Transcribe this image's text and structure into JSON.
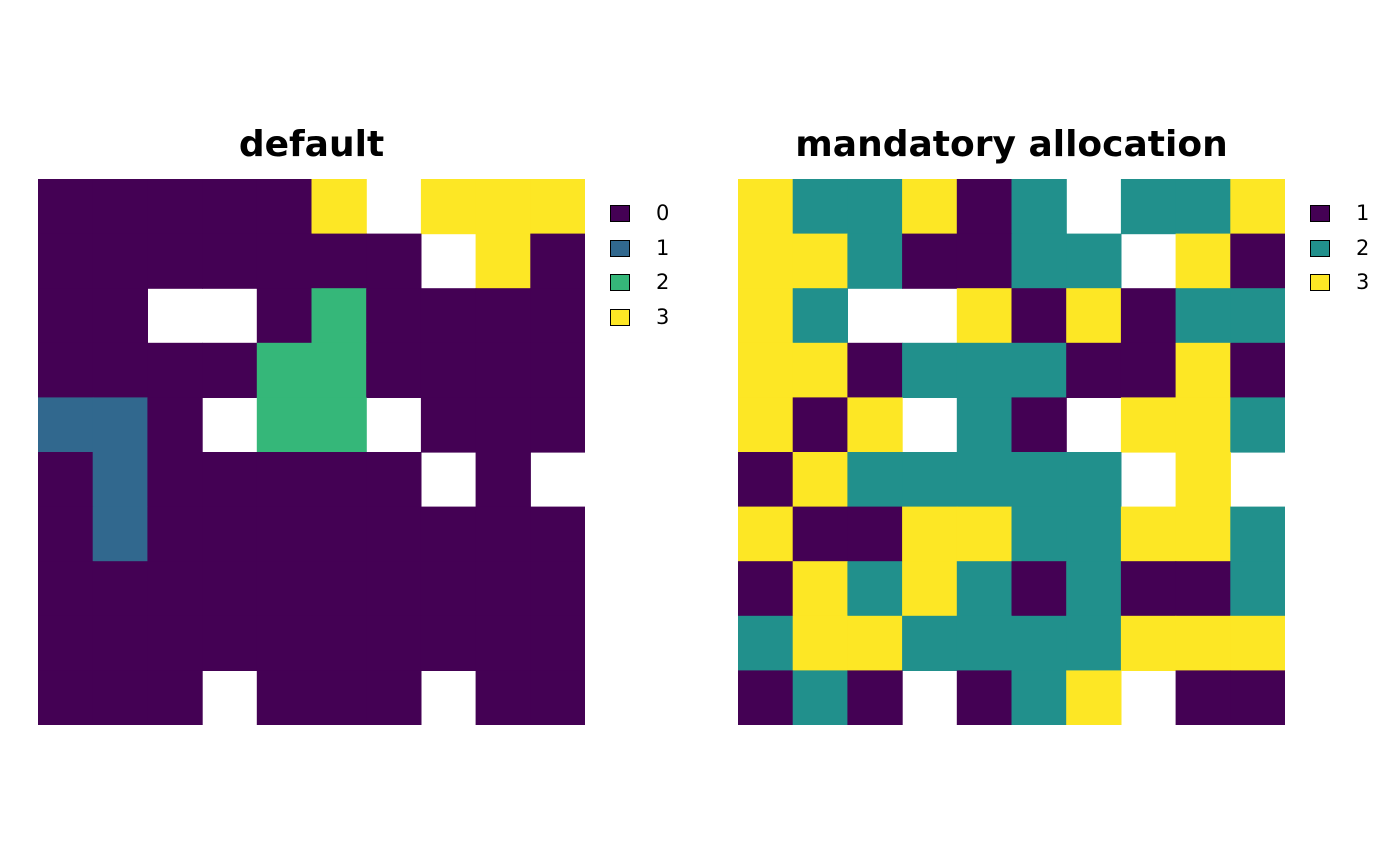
{
  "chart_data": [
    {
      "type": "heatmap",
      "title": "default",
      "legend": {
        "placement": "right",
        "entries": [
          {
            "label": "0",
            "color": "#440154"
          },
          {
            "label": "1",
            "color": "#31688e"
          },
          {
            "label": "2",
            "color": "#35b779"
          },
          {
            "label": "3",
            "color": "#fde725"
          }
        ]
      },
      "grid": [
        [
          0,
          0,
          0,
          0,
          0,
          3,
          null,
          3,
          3,
          3
        ],
        [
          0,
          0,
          0,
          0,
          0,
          0,
          0,
          null,
          3,
          0
        ],
        [
          0,
          0,
          null,
          null,
          0,
          2,
          0,
          0,
          0,
          0
        ],
        [
          0,
          0,
          0,
          0,
          2,
          2,
          0,
          0,
          0,
          0
        ],
        [
          1,
          1,
          0,
          null,
          2,
          2,
          null,
          0,
          0,
          0
        ],
        [
          0,
          1,
          0,
          0,
          0,
          0,
          0,
          null,
          0,
          null
        ],
        [
          0,
          1,
          0,
          0,
          0,
          0,
          0,
          0,
          0,
          0
        ],
        [
          0,
          0,
          0,
          0,
          0,
          0,
          0,
          0,
          0,
          0
        ],
        [
          0,
          0,
          0,
          0,
          0,
          0,
          0,
          0,
          0,
          0
        ],
        [
          0,
          0,
          0,
          null,
          0,
          0,
          0,
          null,
          0,
          0
        ]
      ]
    },
    {
      "type": "heatmap",
      "title": "mandatory allocation",
      "legend": {
        "placement": "right",
        "entries": [
          {
            "label": "1",
            "color": "#440154"
          },
          {
            "label": "2",
            "color": "#21908c"
          },
          {
            "label": "3",
            "color": "#fde725"
          }
        ]
      },
      "grid": [
        [
          3,
          2,
          2,
          3,
          1,
          2,
          null,
          2,
          2,
          3
        ],
        [
          3,
          3,
          2,
          1,
          1,
          2,
          2,
          null,
          3,
          1
        ],
        [
          3,
          2,
          null,
          null,
          3,
          1,
          3,
          1,
          2,
          2
        ],
        [
          3,
          3,
          1,
          2,
          2,
          2,
          1,
          1,
          3,
          1
        ],
        [
          3,
          1,
          3,
          null,
          2,
          1,
          null,
          3,
          3,
          2
        ],
        [
          1,
          3,
          2,
          2,
          2,
          2,
          2,
          null,
          3,
          null
        ],
        [
          3,
          1,
          1,
          3,
          3,
          2,
          2,
          3,
          3,
          2
        ],
        [
          1,
          3,
          2,
          3,
          2,
          1,
          2,
          1,
          1,
          2
        ],
        [
          2,
          3,
          3,
          2,
          2,
          2,
          2,
          3,
          3,
          3
        ],
        [
          1,
          2,
          1,
          null,
          1,
          2,
          3,
          null,
          1,
          1
        ]
      ]
    }
  ]
}
